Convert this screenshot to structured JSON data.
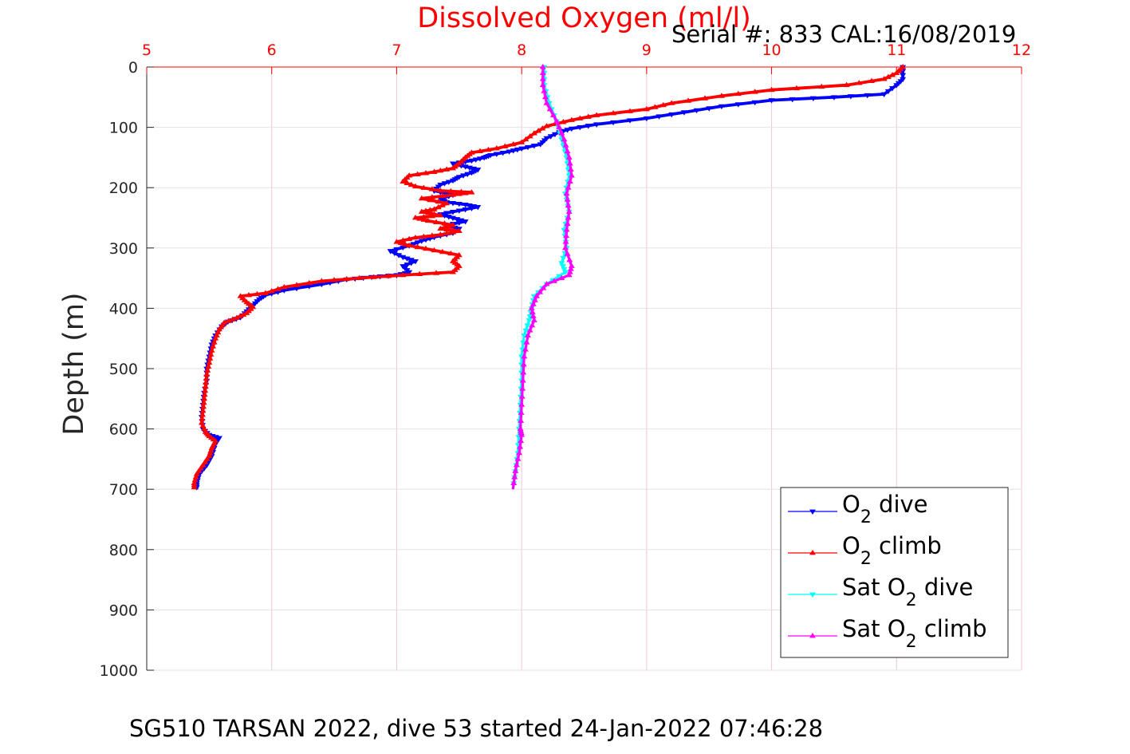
{
  "chart_data": {
    "type": "line",
    "title": "Dissolved Oxygen (ml/l)",
    "title_color": "#ff0000",
    "xlabel": "Dissolved Oxygen (ml/l)",
    "ylabel": "Depth (m)",
    "x_axis_position": "top",
    "y_axis_reversed": true,
    "xlim": [
      5,
      12
    ],
    "ylim": [
      0,
      1000
    ],
    "xticks": [
      "5",
      "6",
      "7",
      "8",
      "9",
      "10",
      "11",
      "12"
    ],
    "yticks": [
      "0",
      "100",
      "200",
      "300",
      "400",
      "500",
      "600",
      "700",
      "800",
      "900",
      "1000"
    ],
    "grid": true,
    "grid_color": "#f4c6d2",
    "legend_position": "bottom-right",
    "series": [
      {
        "name": "O2 dive",
        "label_parts": [
          "O",
          "2",
          " dive"
        ],
        "color": "#0000ff",
        "marker": "triangle-down",
        "points": [
          [
            11.05,
            0
          ],
          [
            11.05,
            20
          ],
          [
            11.0,
            30
          ],
          [
            10.9,
            45
          ],
          [
            10.5,
            50
          ],
          [
            10.0,
            55
          ],
          [
            9.6,
            65
          ],
          [
            9.3,
            75
          ],
          [
            9.0,
            85
          ],
          [
            8.6,
            95
          ],
          [
            8.4,
            102
          ],
          [
            8.3,
            108
          ],
          [
            8.2,
            118
          ],
          [
            8.15,
            128
          ],
          [
            8.0,
            135
          ],
          [
            7.9,
            140
          ],
          [
            7.75,
            146
          ],
          [
            7.7,
            150
          ],
          [
            7.6,
            155
          ],
          [
            7.45,
            160
          ],
          [
            7.55,
            165
          ],
          [
            7.65,
            170
          ],
          [
            7.6,
            175
          ],
          [
            7.5,
            182
          ],
          [
            7.45,
            188
          ],
          [
            7.35,
            195
          ],
          [
            7.3,
            205
          ],
          [
            7.45,
            212
          ],
          [
            7.35,
            218
          ],
          [
            7.4,
            224
          ],
          [
            7.55,
            228
          ],
          [
            7.65,
            232
          ],
          [
            7.5,
            238
          ],
          [
            7.35,
            244
          ],
          [
            7.45,
            250
          ],
          [
            7.55,
            256
          ],
          [
            7.4,
            262
          ],
          [
            7.5,
            268
          ],
          [
            7.45,
            275
          ],
          [
            7.3,
            282
          ],
          [
            7.2,
            288
          ],
          [
            7.1,
            296
          ],
          [
            6.95,
            305
          ],
          [
            7.05,
            315
          ],
          [
            7.15,
            322
          ],
          [
            7.05,
            330
          ],
          [
            7.1,
            340
          ],
          [
            7.0,
            345
          ],
          [
            6.8,
            348
          ],
          [
            6.6,
            352
          ],
          [
            6.4,
            360
          ],
          [
            6.1,
            370
          ],
          [
            5.95,
            378
          ],
          [
            5.9,
            385
          ],
          [
            5.85,
            395
          ],
          [
            5.8,
            405
          ],
          [
            5.75,
            415
          ],
          [
            5.65,
            422
          ],
          [
            5.6,
            430
          ],
          [
            5.55,
            445
          ],
          [
            5.52,
            460
          ],
          [
            5.5,
            480
          ],
          [
            5.48,
            500
          ],
          [
            5.48,
            520
          ],
          [
            5.46,
            540
          ],
          [
            5.45,
            560
          ],
          [
            5.44,
            580
          ],
          [
            5.45,
            600
          ],
          [
            5.5,
            610
          ],
          [
            5.58,
            615
          ],
          [
            5.55,
            625
          ],
          [
            5.52,
            645
          ],
          [
            5.48,
            660
          ],
          [
            5.42,
            675
          ],
          [
            5.4,
            690
          ],
          [
            5.4,
            700
          ]
        ]
      },
      {
        "name": "O2 climb",
        "label_parts": [
          "O",
          "2",
          " climb"
        ],
        "color": "#ff0000",
        "marker": "triangle-up",
        "points": [
          [
            11.05,
            0
          ],
          [
            11.0,
            10
          ],
          [
            10.9,
            20
          ],
          [
            10.6,
            30
          ],
          [
            10.0,
            38
          ],
          [
            9.6,
            48
          ],
          [
            9.2,
            60
          ],
          [
            9.0,
            70
          ],
          [
            8.6,
            80
          ],
          [
            8.4,
            88
          ],
          [
            8.2,
            98
          ],
          [
            8.1,
            110
          ],
          [
            8.0,
            125
          ],
          [
            7.8,
            135
          ],
          [
            7.6,
            142
          ],
          [
            7.55,
            150
          ],
          [
            7.5,
            160
          ],
          [
            7.45,
            168
          ],
          [
            7.3,
            174
          ],
          [
            7.1,
            180
          ],
          [
            7.05,
            190
          ],
          [
            7.15,
            198
          ],
          [
            7.35,
            205
          ],
          [
            7.6,
            208
          ],
          [
            7.45,
            212
          ],
          [
            7.2,
            218
          ],
          [
            7.4,
            226
          ],
          [
            7.3,
            236
          ],
          [
            7.2,
            240
          ],
          [
            7.35,
            246
          ],
          [
            7.15,
            250
          ],
          [
            7.25,
            255
          ],
          [
            7.45,
            262
          ],
          [
            7.35,
            268
          ],
          [
            7.5,
            272
          ],
          [
            7.35,
            278
          ],
          [
            7.15,
            283
          ],
          [
            7.0,
            290
          ],
          [
            7.1,
            296
          ],
          [
            7.3,
            304
          ],
          [
            7.5,
            312
          ],
          [
            7.45,
            322
          ],
          [
            7.5,
            330
          ],
          [
            7.45,
            340
          ],
          [
            7.05,
            345
          ],
          [
            6.7,
            350
          ],
          [
            6.4,
            355
          ],
          [
            6.1,
            365
          ],
          [
            5.95,
            375
          ],
          [
            5.75,
            380
          ],
          [
            5.8,
            390
          ],
          [
            5.85,
            398
          ],
          [
            5.8,
            408
          ],
          [
            5.72,
            416
          ],
          [
            5.62,
            424
          ],
          [
            5.58,
            435
          ],
          [
            5.55,
            450
          ],
          [
            5.52,
            470
          ],
          [
            5.5,
            490
          ],
          [
            5.48,
            510
          ],
          [
            5.47,
            530
          ],
          [
            5.46,
            550
          ],
          [
            5.45,
            570
          ],
          [
            5.44,
            590
          ],
          [
            5.47,
            605
          ],
          [
            5.5,
            612
          ],
          [
            5.55,
            620
          ],
          [
            5.52,
            632
          ],
          [
            5.5,
            645
          ],
          [
            5.45,
            660
          ],
          [
            5.4,
            675
          ],
          [
            5.38,
            690
          ],
          [
            5.38,
            700
          ]
        ]
      },
      {
        "name": "Sat O2 dive",
        "label_parts": [
          "Sat O",
          "2",
          " dive"
        ],
        "color": "#00ffff",
        "marker": "triangle-down",
        "points": [
          [
            8.18,
            0
          ],
          [
            8.18,
            30
          ],
          [
            8.22,
            60
          ],
          [
            8.28,
            90
          ],
          [
            8.32,
            120
          ],
          [
            8.36,
            150
          ],
          [
            8.38,
            180
          ],
          [
            8.35,
            210
          ],
          [
            8.38,
            240
          ],
          [
            8.34,
            270
          ],
          [
            8.36,
            300
          ],
          [
            8.32,
            325
          ],
          [
            8.35,
            340
          ],
          [
            8.2,
            360
          ],
          [
            8.1,
            380
          ],
          [
            8.08,
            400
          ],
          [
            8.06,
            420
          ],
          [
            8.02,
            445
          ],
          [
            8.0,
            480
          ],
          [
            8.0,
            520
          ],
          [
            7.99,
            560
          ],
          [
            7.98,
            600
          ],
          [
            7.97,
            640
          ],
          [
            7.95,
            670
          ],
          [
            7.93,
            700
          ]
        ]
      },
      {
        "name": "Sat O2 climb",
        "label_parts": [
          "Sat O",
          "2",
          " climb"
        ],
        "color": "#ff00ff",
        "marker": "triangle-up",
        "points": [
          [
            8.17,
            0
          ],
          [
            8.17,
            30
          ],
          [
            8.2,
            60
          ],
          [
            8.28,
            90
          ],
          [
            8.34,
            120
          ],
          [
            8.38,
            150
          ],
          [
            8.4,
            180
          ],
          [
            8.36,
            210
          ],
          [
            8.38,
            240
          ],
          [
            8.36,
            270
          ],
          [
            8.35,
            300
          ],
          [
            8.4,
            330
          ],
          [
            8.38,
            345
          ],
          [
            8.2,
            360
          ],
          [
            8.12,
            380
          ],
          [
            8.08,
            400
          ],
          [
            8.1,
            420
          ],
          [
            8.05,
            445
          ],
          [
            8.02,
            480
          ],
          [
            8.01,
            520
          ],
          [
            8.0,
            560
          ],
          [
            7.99,
            600
          ],
          [
            8.0,
            610
          ],
          [
            7.98,
            640
          ],
          [
            7.95,
            670
          ],
          [
            7.93,
            700
          ]
        ]
      }
    ]
  },
  "serial_text": "Serial #: 833  CAL:16/08/2019",
  "caption": "SG510 TARSAN 2022, dive 53 started 24-Jan-2022 07:46:28"
}
